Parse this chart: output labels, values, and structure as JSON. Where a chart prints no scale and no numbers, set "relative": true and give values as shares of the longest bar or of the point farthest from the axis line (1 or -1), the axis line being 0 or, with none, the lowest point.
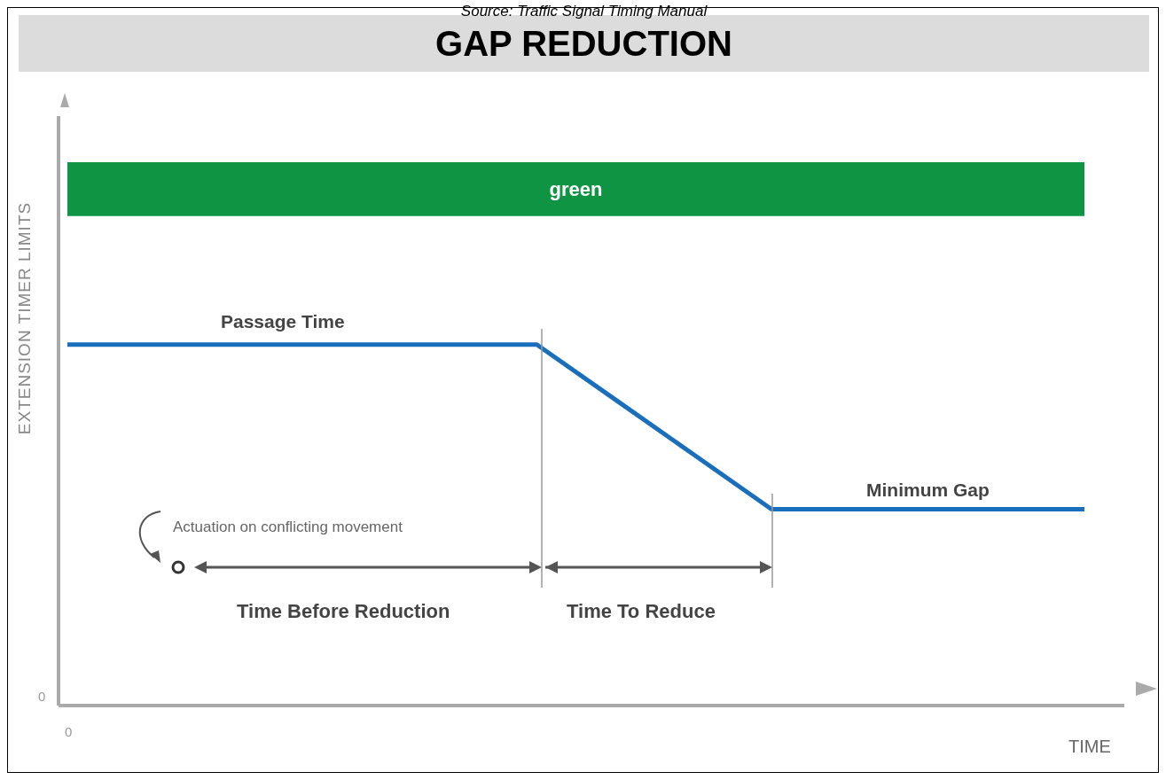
{
  "chart_data": {
    "type": "line",
    "title": "GAP REDUCTION",
    "xlabel": "TIME",
    "ylabel": "EXTENSION TIMER LIMITS",
    "relative": true,
    "categories": [
      null,
      null,
      null,
      null,
      null,
      null,
      null,
      null,
      null,
      null,
      null,
      null,
      null,
      null
    ],
    "series": [
      {
        "color": "#1a6fbd",
        "values": [
          1,
          1,
          1,
          1,
          1,
          1,
          1,
          0.848,
          0.696,
          0.544,
          0.544,
          0.544,
          0.544,
          0.544
        ]
      }
    ],
    "bands": [
      {
        "axis": "y",
        "from": 1.356,
        "to": 1.505,
        "label": "green",
        "color": "#0f9444"
      }
    ],
    "annotations": [
      "Source: Traffic Signal Timing Manual",
      "Passage Time",
      "Minimum Gap",
      "Actuation on conflicting movement",
      "Time Before Reduction",
      "Time To Reduce",
      "0",
      "0"
    ],
    "grid": false,
    "legend": false,
    "marker": "none",
    "line_style": "solid"
  }
}
